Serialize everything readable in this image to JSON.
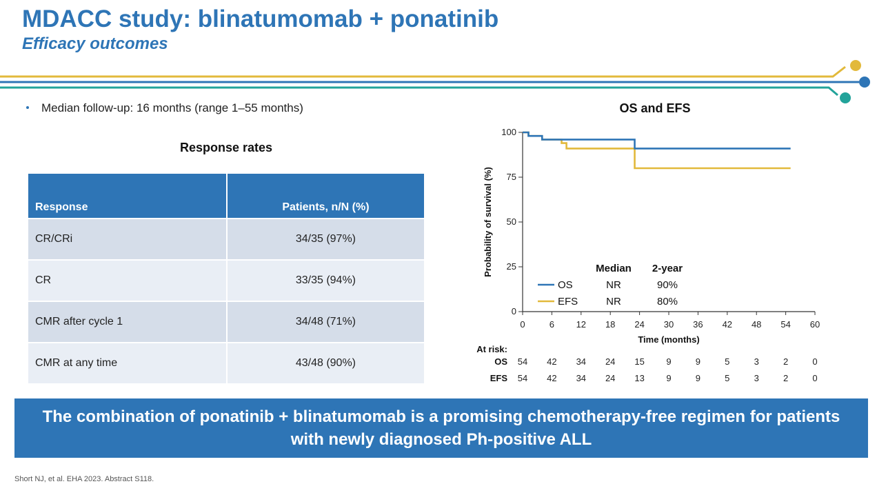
{
  "header": {
    "title": "MDACC study: blinatumomab + ponatinib",
    "subtitle": "Efficacy outcomes"
  },
  "colors": {
    "brand_blue": "#2e75b6",
    "os_line": "#2e75b6",
    "efs_line": "#e2b93b",
    "accent_teal": "#22a39a",
    "table_row_dark": "#d5dde9",
    "table_row_light": "#e9eef5"
  },
  "bullet": "Median follow-up: 16 months (range 1–55 months)",
  "response_table": {
    "title": "Response rates",
    "headers": [
      "Response",
      "Patients, n/N (%)"
    ],
    "rows": [
      {
        "label": "CR/CRi",
        "value": "34/35 (97%)"
      },
      {
        "label": "CR",
        "value": "33/35 (94%)"
      },
      {
        "label": "CMR after cycle 1",
        "value": "34/48 (71%)"
      },
      {
        "label": "CMR at any time",
        "value": "43/48 (90%)"
      }
    ]
  },
  "chart_data": [
    {
      "type": "table",
      "title": "Response rates",
      "columns": [
        "Response",
        "Patients, n/N (%)"
      ],
      "rows": [
        [
          "CR/CRi",
          "34/35 (97%)"
        ],
        [
          "CR",
          "33/35 (94%)"
        ],
        [
          "CMR after cycle 1",
          "34/48 (71%)"
        ],
        [
          "CMR at any time",
          "43/48 (90%)"
        ]
      ]
    },
    {
      "type": "line",
      "title": "OS and EFS",
      "xlabel": "Time (months)",
      "ylabel": "Probability of survival (%)",
      "xlim": [
        0,
        60
      ],
      "ylim": [
        0,
        100
      ],
      "xticks": [
        "0",
        "6",
        "12",
        "18",
        "24",
        "30",
        "36",
        "42",
        "48",
        "54",
        "60"
      ],
      "yticks": [
        "0",
        "25",
        "50",
        "75",
        "100"
      ],
      "grid": false,
      "legend_position": "bottom-center",
      "legend_headers": [
        "Median",
        "2-year"
      ],
      "series": [
        {
          "name": "OS",
          "median": "NR",
          "two_year": "90%",
          "step": true,
          "x": [
            0,
            0.6,
            1.2,
            4,
            23,
            55
          ],
          "y": [
            100,
            100,
            98,
            96,
            91,
            91
          ]
        },
        {
          "name": "EFS",
          "median": "NR",
          "two_year": "80%",
          "step": true,
          "x": [
            0,
            0.6,
            1.2,
            4,
            8,
            9,
            23,
            55
          ],
          "y": [
            100,
            100,
            98,
            96,
            94,
            91,
            80,
            80
          ]
        }
      ],
      "at_risk": {
        "label": "At risk:",
        "rows": [
          {
            "name": "OS",
            "values": [
              "54",
              "42",
              "34",
              "24",
              "15",
              "9",
              "9",
              "5",
              "3",
              "2",
              "0"
            ]
          },
          {
            "name": "EFS",
            "values": [
              "54",
              "42",
              "34",
              "24",
              "13",
              "9",
              "9",
              "5",
              "3",
              "2",
              "0"
            ]
          }
        ]
      }
    }
  ],
  "banner": "The combination of ponatinib + blinatumomab is a promising chemotherapy-free regimen for patients with newly diagnosed Ph-positive ALL",
  "footnote": "Short NJ, et al. EHA 2023. Abstract S118."
}
